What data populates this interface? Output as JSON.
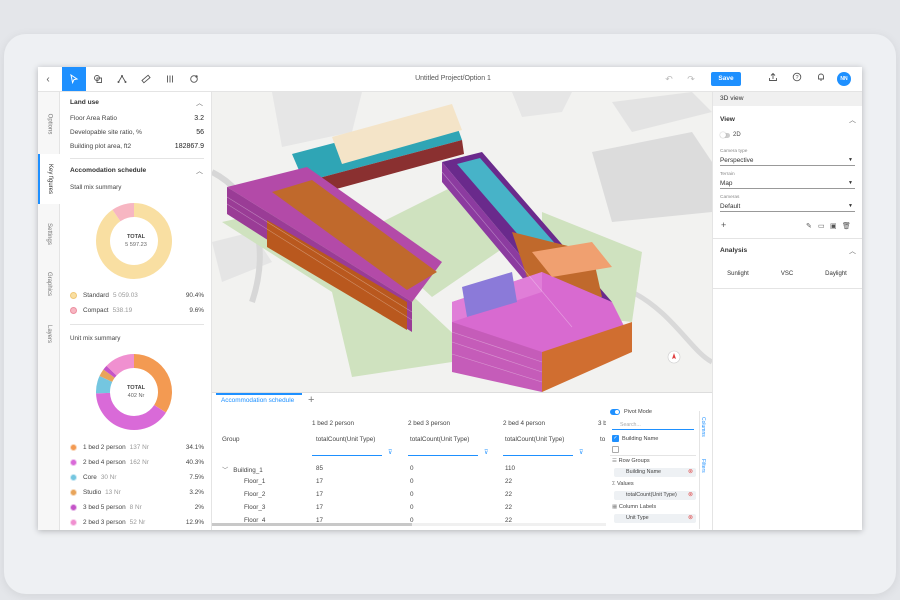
{
  "topbar": {
    "title": "Untitled Project/Option 1",
    "save_label": "Save",
    "avatar_initials": "NN",
    "tools": [
      "select-tool",
      "shapes-tool",
      "polyline-tool",
      "measure-tool",
      "columns-tool",
      "render-tool"
    ]
  },
  "vertical_tabs": [
    "Options",
    "Key figures",
    "Settings",
    "Graphics",
    "Layers"
  ],
  "left": {
    "land_use": {
      "title": "Land use",
      "rows": [
        {
          "label": "Floor Area Ratio",
          "value": "3.2"
        },
        {
          "label": "Developable site ratio, %",
          "value": "56"
        },
        {
          "label": "Building plot area, ft2",
          "value": "182867.9"
        }
      ]
    },
    "accommodation": {
      "title": "Accomodation schedule",
      "stall_title": "Stall mix summary",
      "stall_total_label": "TOTAL",
      "stall_total_value": "5 597.23",
      "stall_items": [
        {
          "label": "Standard",
          "count": "5 059.03",
          "pct": "90.4%",
          "color": "#f9dfa2"
        },
        {
          "label": "Compact",
          "count": "538.19",
          "pct": "9.6%",
          "color": "#f7b6c2"
        }
      ],
      "unit_title": "Unit mix summary",
      "unit_total_label": "TOTAL",
      "unit_total_value": "402 Nr",
      "unit_items": [
        {
          "label": "1 bed 2 person",
          "count": "137 Nr",
          "pct": "34.1%",
          "color": "#f39a52"
        },
        {
          "label": "2 bed 4 person",
          "count": "162 Nr",
          "pct": "40.3%",
          "color": "#d96ad8"
        },
        {
          "label": "Core",
          "count": "30 Nr",
          "pct": "7.5%",
          "color": "#74c6e0"
        },
        {
          "label": "Studio",
          "count": "13 Nr",
          "pct": "3.2%",
          "color": "#e8a45a"
        },
        {
          "label": "3 bed 5 person",
          "count": "8 Nr",
          "pct": "2%",
          "color": "#c454c8"
        },
        {
          "label": "2 bed 3 person",
          "count": "52 Nr",
          "pct": "12.9%",
          "color": "#f090d0"
        }
      ]
    }
  },
  "bottom": {
    "tab": "Accommodation schedule",
    "group_header": "Group",
    "columns": [
      {
        "title": "1 bed 2 person",
        "sub": "totalCount(Unit Type)"
      },
      {
        "title": "2 bed 3 person",
        "sub": "totalCount(Unit Type)"
      },
      {
        "title": "2 bed 4 person",
        "sub": "totalCount(Unit Type)"
      },
      {
        "title": "3 b",
        "sub": "to"
      }
    ],
    "rows": [
      {
        "name": "Building_1",
        "values": [
          "85",
          "0",
          "110"
        ]
      },
      {
        "name": "Floor_1",
        "values": [
          "17",
          "0",
          "22"
        ]
      },
      {
        "name": "Floor_2",
        "values": [
          "17",
          "0",
          "22"
        ]
      },
      {
        "name": "Floor_3",
        "values": [
          "17",
          "0",
          "22"
        ]
      },
      {
        "name": "Floor_4",
        "values": [
          "17",
          "0",
          "22"
        ]
      }
    ],
    "pivot": {
      "mode_label": "Pivot Mode",
      "search_placeholder": "Search...",
      "field": "Building Name",
      "row_groups": "Row Groups",
      "row_group_chip": "Building Name",
      "values": "Values",
      "values_chip": "totalCount(Unit Type)",
      "column_labels": "Column Labels",
      "column_chip": "Unit Type",
      "side_tabs": [
        "Columns",
        "Filters"
      ]
    }
  },
  "right": {
    "header": "3D view",
    "view_title": "View",
    "toggle_label": "2D",
    "camera_label": "Camera type",
    "camera_value": "Perspective",
    "terrain_label": "Terrain",
    "terrain_value": "Map",
    "cameras_label": "Cameras",
    "cameras_value": "Default",
    "analysis_title": "Analysis",
    "analysis_buttons": [
      "Sunlight",
      "VSC",
      "Daylight"
    ]
  }
}
